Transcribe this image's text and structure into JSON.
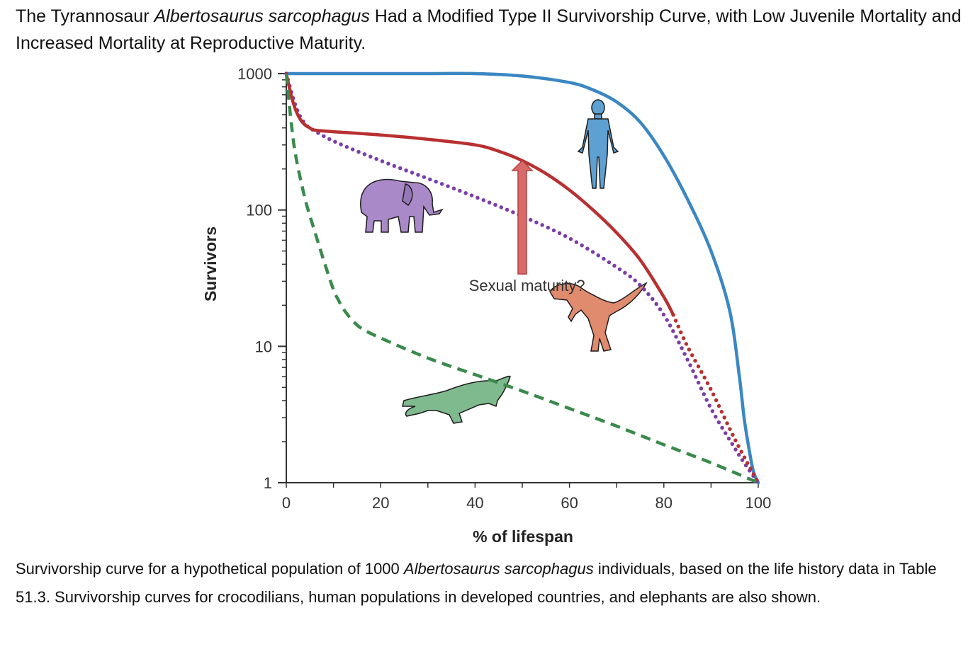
{
  "header": {
    "title_pre": "The Tyrannosaur ",
    "title_species": "Albertosaurus sarcophagus",
    "title_post": " Had a Modified Type II Survivorship Curve, with Low Juvenile Mortality and Increased Mortality at Reproductive Maturity."
  },
  "caption": {
    "pre": "Survivorship curve for a hypothetical population of 1000 ",
    "species": "Albertosaurus sarcophagus",
    "post": " individuals, based on the life history data in Table 51.3. Survivorship curves for crocodilians, human populations in developed countries, and elephants are also shown."
  },
  "chart_data": {
    "type": "line",
    "xlabel": "% of lifespan",
    "ylabel": "Survivors",
    "xlim": [
      0,
      100
    ],
    "ylim": [
      1,
      1000
    ],
    "yscale": "log",
    "x_ticks": [
      0,
      20,
      40,
      60,
      80,
      100
    ],
    "y_ticks": [
      1,
      10,
      100,
      1000
    ],
    "y_tick_labels": [
      "1",
      "10",
      "100",
      "1000"
    ],
    "grid": false,
    "annotations": [
      {
        "text": "Sexual maturity?",
        "x": 51,
        "y": 28,
        "arrow_to": [
          50,
          230
        ]
      }
    ],
    "series": [
      {
        "group": "human",
        "color": "#3a87c3",
        "style": "solid",
        "x": [
          0,
          10,
          20,
          30,
          40,
          50,
          60,
          65,
          70,
          75,
          80,
          85,
          90,
          94,
          96,
          97,
          98,
          99,
          100
        ],
        "y": [
          1000,
          1000,
          1000,
          1000,
          1000,
          960,
          860,
          760,
          620,
          440,
          250,
          120,
          50,
          18,
          6,
          3,
          1.8,
          1.2,
          1
        ]
      },
      {
        "group": "elephant",
        "color": "#7b3ea6",
        "style": "dotted",
        "x": [
          0,
          1,
          2,
          3,
          4,
          5,
          10,
          20,
          30,
          40,
          50,
          60,
          70,
          75,
          80,
          85,
          90,
          95,
          97,
          100
        ],
        "y": [
          1000,
          750,
          580,
          480,
          430,
          400,
          320,
          230,
          170,
          125,
          90,
          62,
          38,
          28,
          17,
          8,
          3.5,
          1.8,
          1.4,
          1
        ]
      },
      {
        "group": "albertosaurus",
        "color": "#b83030",
        "style": "solid",
        "x": [
          0,
          1,
          2,
          3,
          4,
          5,
          6,
          10,
          20,
          30,
          40,
          45,
          50,
          55,
          60,
          65,
          70,
          75,
          80,
          82
        ],
        "y": [
          1000,
          700,
          540,
          460,
          420,
          400,
          385,
          375,
          355,
          330,
          300,
          270,
          230,
          185,
          140,
          100,
          68,
          43,
          23,
          17
        ]
      },
      {
        "group": "albertosaurus-projected",
        "color": "#b83030",
        "style": "dotted",
        "x": [
          82,
          85,
          90,
          95,
          100
        ],
        "y": [
          17,
          10,
          4.8,
          2.1,
          1
        ]
      },
      {
        "group": "crocodilian",
        "color": "#3a8a4c",
        "style": "dashed",
        "x": [
          0,
          1,
          2,
          4,
          6,
          8,
          10,
          11,
          12,
          14,
          16,
          20,
          30,
          40,
          50,
          60,
          70,
          80,
          90,
          100
        ],
        "y": [
          1000,
          450,
          250,
          120,
          70,
          42,
          26,
          22,
          19,
          15.5,
          13.5,
          11.5,
          8.2,
          6.2,
          4.7,
          3.5,
          2.6,
          1.9,
          1.4,
          1
        ]
      }
    ]
  }
}
